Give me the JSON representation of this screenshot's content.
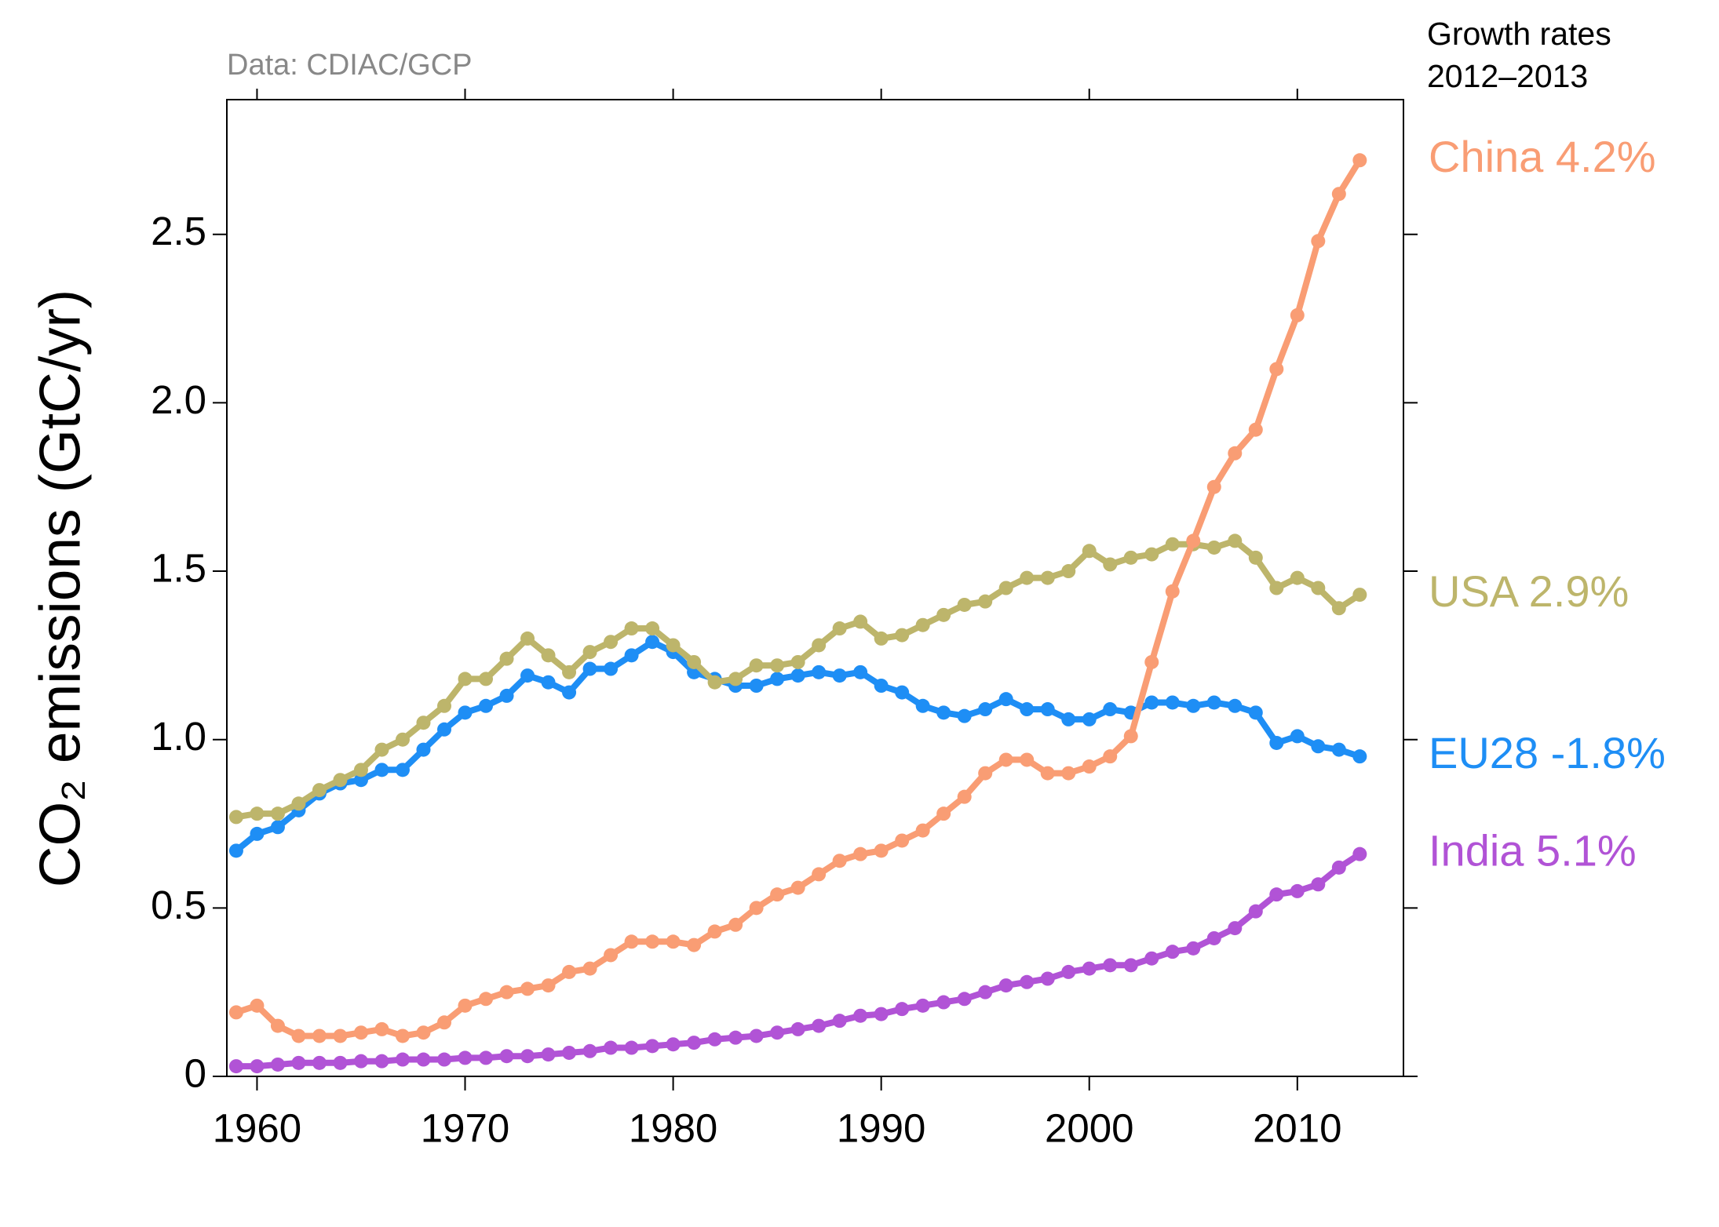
{
  "chart_data": {
    "type": "line",
    "source": "Data: CDIAC/GCP",
    "annotation_title": [
      "Growth rates",
      "2012–2013"
    ],
    "y_label": "CO₂ emissions (GtC/yr)",
    "x": [
      1959,
      1960,
      1961,
      1962,
      1963,
      1964,
      1965,
      1966,
      1967,
      1968,
      1969,
      1970,
      1971,
      1972,
      1973,
      1974,
      1975,
      1976,
      1977,
      1978,
      1979,
      1980,
      1981,
      1982,
      1983,
      1984,
      1985,
      1986,
      1987,
      1988,
      1989,
      1990,
      1991,
      1992,
      1993,
      1994,
      1995,
      1996,
      1997,
      1998,
      1999,
      2000,
      2001,
      2002,
      2003,
      2004,
      2005,
      2006,
      2007,
      2008,
      2009,
      2010,
      2011,
      2012,
      2013
    ],
    "xlim": [
      1958.55,
      2015.1
    ],
    "xticks": [
      1960,
      1970,
      1980,
      1990,
      2000,
      2010
    ],
    "ylim": [
      0,
      2.9
    ],
    "yticks": [
      0,
      0.5,
      {
        "value": 1,
        "label": "1.0"
      },
      1.5,
      {
        "value": 2,
        "label": "2.0"
      },
      2.5
    ],
    "series": [
      {
        "name": "China",
        "label": "China 4.2%",
        "color": "#f99d74",
        "values": [
          0.19,
          0.21,
          0.15,
          0.12,
          0.12,
          0.12,
          0.13,
          0.14,
          0.12,
          0.13,
          0.16,
          0.21,
          0.23,
          0.25,
          0.26,
          0.27,
          0.31,
          0.32,
          0.36,
          0.4,
          0.4,
          0.4,
          0.39,
          0.43,
          0.45,
          0.5,
          0.54,
          0.56,
          0.6,
          0.64,
          0.66,
          0.67,
          0.7,
          0.73,
          0.78,
          0.83,
          0.9,
          0.94,
          0.94,
          0.9,
          0.9,
          0.92,
          0.95,
          1.01,
          1.23,
          1.44,
          1.59,
          1.75,
          1.85,
          1.92,
          2.1,
          2.26,
          2.48,
          2.62,
          2.72
        ]
      },
      {
        "name": "USA",
        "label": "USA 2.9%",
        "color": "#bdb56b",
        "values": [
          0.77,
          0.78,
          0.78,
          0.81,
          0.85,
          0.88,
          0.91,
          0.97,
          1.0,
          1.05,
          1.1,
          1.18,
          1.18,
          1.24,
          1.3,
          1.25,
          1.2,
          1.26,
          1.29,
          1.33,
          1.33,
          1.28,
          1.23,
          1.17,
          1.18,
          1.22,
          1.22,
          1.23,
          1.28,
          1.33,
          1.35,
          1.3,
          1.31,
          1.34,
          1.37,
          1.4,
          1.41,
          1.45,
          1.48,
          1.48,
          1.5,
          1.56,
          1.52,
          1.54,
          1.55,
          1.58,
          1.58,
          1.57,
          1.59,
          1.54,
          1.45,
          1.48,
          1.45,
          1.39,
          1.43
        ]
      },
      {
        "name": "EU28",
        "label": "EU28 -1.8%",
        "color": "#1e8ef5",
        "values": [
          0.67,
          0.72,
          0.74,
          0.79,
          0.84,
          0.87,
          0.88,
          0.91,
          0.91,
          0.97,
          1.03,
          1.08,
          1.1,
          1.13,
          1.19,
          1.17,
          1.14,
          1.21,
          1.21,
          1.25,
          1.29,
          1.26,
          1.2,
          1.18,
          1.16,
          1.16,
          1.18,
          1.19,
          1.2,
          1.19,
          1.2,
          1.16,
          1.14,
          1.1,
          1.08,
          1.07,
          1.09,
          1.12,
          1.09,
          1.09,
          1.06,
          1.06,
          1.09,
          1.08,
          1.11,
          1.11,
          1.1,
          1.11,
          1.1,
          1.08,
          0.99,
          1.01,
          0.98,
          0.97,
          0.95
        ]
      },
      {
        "name": "India",
        "label": "India 5.1%",
        "color": "#b153d6",
        "values": [
          0.03,
          0.03,
          0.035,
          0.04,
          0.04,
          0.04,
          0.045,
          0.045,
          0.05,
          0.05,
          0.05,
          0.055,
          0.055,
          0.06,
          0.06,
          0.065,
          0.07,
          0.075,
          0.085,
          0.085,
          0.09,
          0.095,
          0.1,
          0.11,
          0.115,
          0.12,
          0.13,
          0.14,
          0.15,
          0.165,
          0.18,
          0.185,
          0.2,
          0.21,
          0.22,
          0.23,
          0.25,
          0.27,
          0.28,
          0.29,
          0.31,
          0.32,
          0.33,
          0.33,
          0.35,
          0.37,
          0.38,
          0.41,
          0.44,
          0.49,
          0.54,
          0.55,
          0.57,
          0.62,
          0.66
        ]
      }
    ]
  }
}
